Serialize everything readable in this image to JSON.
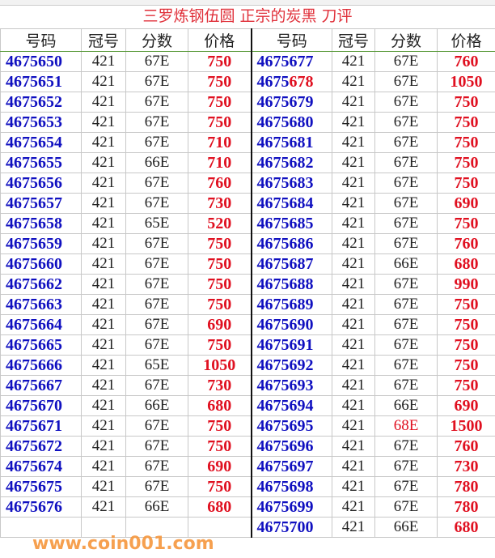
{
  "title": "三罗炼钢伍圆 正宗的炭黑 刀评",
  "headers": [
    "号码",
    "冠号",
    "分数",
    "价格",
    "号码",
    "冠号",
    "分数",
    "价格"
  ],
  "left": [
    [
      "4675650",
      "421",
      "67E",
      "750"
    ],
    [
      "4675651",
      "421",
      "67E",
      "750"
    ],
    [
      "4675652",
      "421",
      "67E",
      "750"
    ],
    [
      "4675653",
      "421",
      "67E",
      "750"
    ],
    [
      "4675654",
      "421",
      "67E",
      "710"
    ],
    [
      "4675655",
      "421",
      "66E",
      "710"
    ],
    [
      "4675656",
      "421",
      "67E",
      "760"
    ],
    [
      "4675657",
      "421",
      "67E",
      "730"
    ],
    [
      "4675658",
      "421",
      "65E",
      "520"
    ],
    [
      "4675659",
      "421",
      "67E",
      "750"
    ],
    [
      "4675660",
      "421",
      "67E",
      "750"
    ],
    [
      "4675662",
      "421",
      "67E",
      "750"
    ],
    [
      "4675663",
      "421",
      "67E",
      "750"
    ],
    [
      "4675664",
      "421",
      "67E",
      "690"
    ],
    [
      "4675665",
      "421",
      "67E",
      "750"
    ],
    [
      "4675666",
      "421",
      "65E",
      "1050"
    ],
    [
      "4675667",
      "421",
      "67E",
      "730"
    ],
    [
      "4675670",
      "421",
      "66E",
      "680"
    ],
    [
      "4675671",
      "421",
      "67E",
      "750"
    ],
    [
      "4675672",
      "421",
      "67E",
      "750"
    ],
    [
      "4675674",
      "421",
      "67E",
      "690"
    ],
    [
      "4675675",
      "421",
      "67E",
      "750"
    ],
    [
      "4675676",
      "421",
      "66E",
      "680"
    ],
    [
      "",
      "",
      "",
      ""
    ]
  ],
  "right": [
    [
      "4675677",
      "421",
      "67E",
      "760"
    ],
    [
      "4675678",
      "421",
      "67E",
      "1050"
    ],
    [
      "4675679",
      "421",
      "67E",
      "750"
    ],
    [
      "4675680",
      "421",
      "67E",
      "750"
    ],
    [
      "4675681",
      "421",
      "67E",
      "750"
    ],
    [
      "4675682",
      "421",
      "67E",
      "750"
    ],
    [
      "4675683",
      "421",
      "67E",
      "750"
    ],
    [
      "4675684",
      "421",
      "67E",
      "690"
    ],
    [
      "4675685",
      "421",
      "67E",
      "750"
    ],
    [
      "4675686",
      "421",
      "67E",
      "760"
    ],
    [
      "4675687",
      "421",
      "66E",
      "680"
    ],
    [
      "4675688",
      "421",
      "67E",
      "990"
    ],
    [
      "4675689",
      "421",
      "67E",
      "750"
    ],
    [
      "4675690",
      "421",
      "67E",
      "750"
    ],
    [
      "4675691",
      "421",
      "67E",
      "750"
    ],
    [
      "4675692",
      "421",
      "67E",
      "750"
    ],
    [
      "4675693",
      "421",
      "67E",
      "750"
    ],
    [
      "4675694",
      "421",
      "66E",
      "690"
    ],
    [
      "4675695",
      "421",
      "68E",
      "1500"
    ],
    [
      "4675696",
      "421",
      "67E",
      "760"
    ],
    [
      "4675697",
      "421",
      "67E",
      "730"
    ],
    [
      "4675698",
      "421",
      "67E",
      "780"
    ],
    [
      "4675699",
      "421",
      "67E",
      "780"
    ],
    [
      "4675700",
      "421",
      "66E",
      "680"
    ]
  ],
  "highlights": {
    "red_number_suffix_row": "4675678",
    "red_grade_row": "4675695"
  },
  "watermark": "www.coin001.com",
  "colors": {
    "number": "#1010c0",
    "price": "#e01020",
    "title": "#e0303a"
  }
}
